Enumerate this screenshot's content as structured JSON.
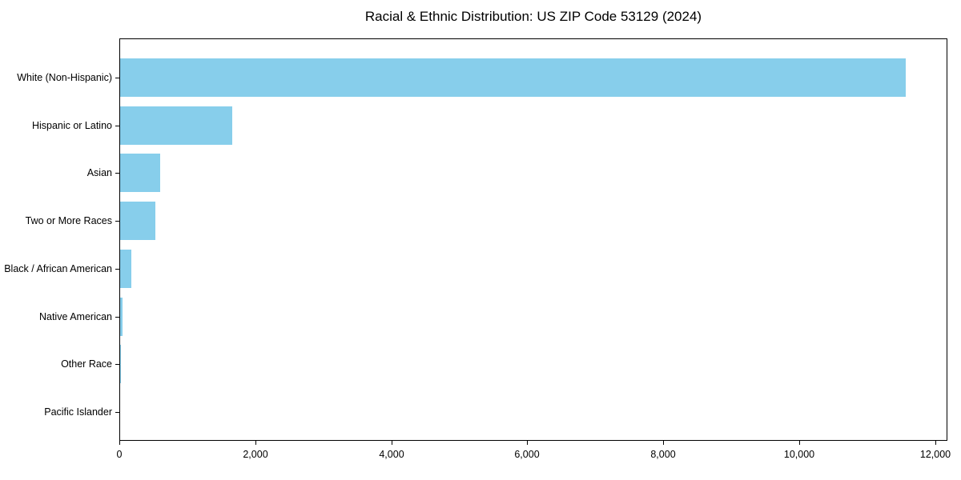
{
  "figure": {
    "title": "Racial & Ethnic Distribution: US ZIP Code 53129 (2024)"
  },
  "chart_data": {
    "type": "bar",
    "orientation": "horizontal",
    "title": "Racial & Ethnic Distribution: US ZIP Code 53129 (2024)",
    "categories": [
      "White (Non-Hispanic)",
      "Hispanic or Latino",
      "Asian",
      "Two or More Races",
      "Black / African American",
      "Native American",
      "Other Race",
      "Pacific Islander"
    ],
    "values": [
      11560,
      1650,
      590,
      520,
      165,
      30,
      10,
      0
    ],
    "xlabel": "",
    "ylabel": "",
    "xlim": [
      0,
      12180
    ],
    "x_ticks": [
      {
        "value": 0,
        "label": "0"
      },
      {
        "value": 2000,
        "label": "2,000"
      },
      {
        "value": 4000,
        "label": "4,000"
      },
      {
        "value": 6000,
        "label": "6,000"
      },
      {
        "value": 8000,
        "label": "8,000"
      },
      {
        "value": 10000,
        "label": "10,000"
      },
      {
        "value": 12000,
        "label": "12,000"
      }
    ],
    "bar_color": "#87CEEB",
    "axis_color": "#000000",
    "grid": false,
    "legend": null
  }
}
